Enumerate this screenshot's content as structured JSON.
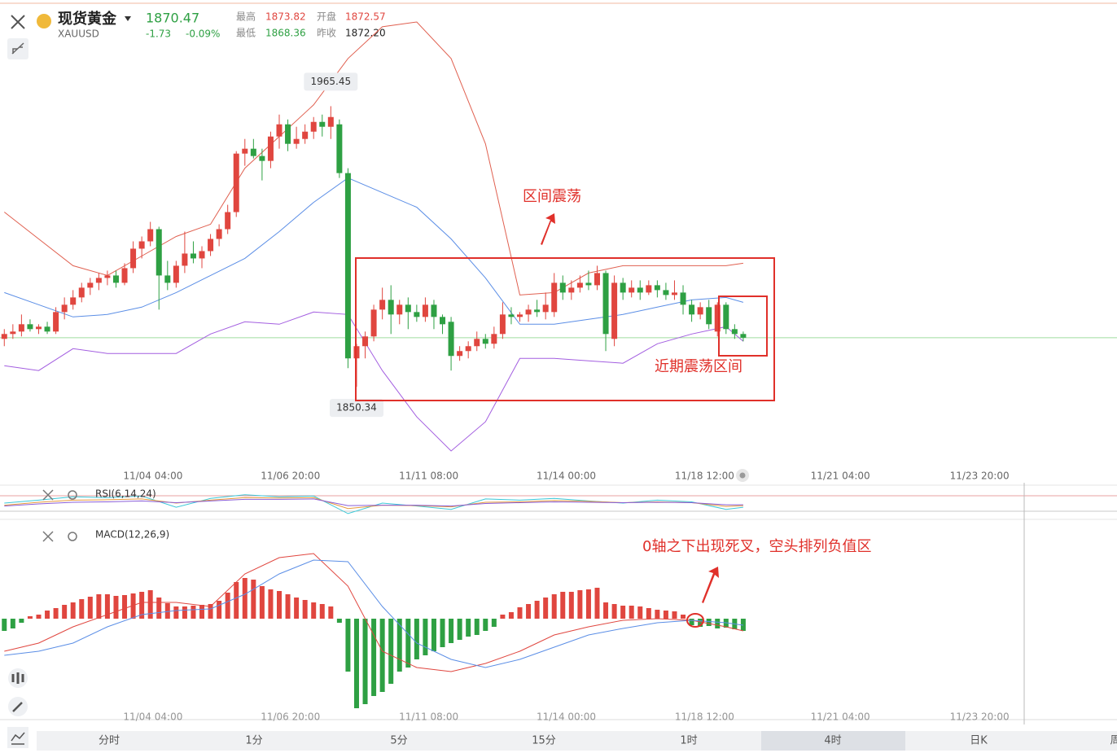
{
  "header": {
    "title": "现货黄金",
    "symbol": "XAUUSD",
    "price": "1870.47",
    "change": "-1.73",
    "change_pct": "-0.09%",
    "stats": [
      {
        "label": "最高",
        "value": "1873.82"
      },
      {
        "label": "开盘",
        "value": "1872.57"
      },
      {
        "label": "最低",
        "value": "1868.36"
      },
      {
        "label": "昨收",
        "value": "1872.20"
      }
    ]
  },
  "chart_data": {
    "type": "candlestick",
    "up_color": "#e0463f",
    "down_color": "#2ea043",
    "xlim": [
      -0.5,
      129.5
    ],
    "ylim": [
      1817,
      2009
    ],
    "xticks": [
      {
        "value": 17.3,
        "label": "11/04 04:00"
      },
      {
        "value": 33.3,
        "label": "11/06 20:00"
      },
      {
        "value": 49.4,
        "label": "11/11 08:00"
      },
      {
        "value": 65.4,
        "label": "11/14 00:00"
      },
      {
        "value": 81.5,
        "label": "11/18 12:00"
      },
      {
        "value": 97.3,
        "label": "11/21 04:00"
      },
      {
        "value": 113.5,
        "label": "11/23 20:00"
      }
    ],
    "candles": {
      "open": [
        1870,
        1872,
        1873,
        1876,
        1874,
        1875,
        1873,
        1881,
        1884,
        1887,
        1891,
        1893,
        1895,
        1896,
        1893,
        1899,
        1907,
        1910,
        1915,
        1896,
        1893,
        1900,
        1905,
        1903,
        1906,
        1911,
        1915,
        1922,
        1946,
        1948,
        1945,
        1943,
        1953,
        1958,
        1950,
        1952,
        1955,
        1959,
        1957,
        1958,
        1938,
        1862,
        1867,
        1871,
        1882,
        1886,
        1880,
        1884,
        1881,
        1879,
        1884,
        1879,
        1877,
        1863,
        1865,
        1867,
        1870,
        1868,
        1872,
        1880,
        1879,
        1880,
        1882,
        1881,
        1881,
        1893,
        1889,
        1891,
        1893,
        1892,
        1897,
        1870,
        1893,
        1889,
        1891,
        1889,
        1892,
        1890,
        1888,
        1889,
        1884,
        1880,
        1883,
        1873,
        1884,
        1874,
        1872
      ],
      "high": [
        1874,
        1876,
        1880,
        1878,
        1876,
        1877,
        1883,
        1887,
        1890,
        1893,
        1895,
        1897,
        1898,
        1898,
        1901,
        1910,
        1912,
        1918,
        1916,
        1902,
        1902,
        1914,
        1910,
        1908,
        1913,
        1917,
        1925,
        1947,
        1952,
        1952,
        1948,
        1955,
        1962,
        1960,
        1957,
        1958,
        1961,
        1962,
        1965.45,
        1960,
        1940,
        1868,
        1873,
        1884,
        1891,
        1892,
        1886,
        1887,
        1884,
        1887,
        1886,
        1880,
        1879,
        1867,
        1869,
        1873,
        1872,
        1875,
        1885,
        1883,
        1881,
        1884,
        1886,
        1889,
        1897,
        1896,
        1894,
        1896,
        1898,
        1900,
        1898,
        1896,
        1895,
        1894,
        1894,
        1894,
        1894,
        1893,
        1894,
        1892,
        1886,
        1885,
        1886,
        1885,
        1885,
        1876,
        1873
      ],
      "low": [
        1867,
        1870,
        1871,
        1873,
        1872,
        1872,
        1872,
        1878,
        1882,
        1885,
        1888,
        1890,
        1892,
        1891,
        1892,
        1897,
        1903,
        1908,
        1882,
        1890,
        1891,
        1897,
        1901,
        1899,
        1904,
        1908,
        1913,
        1920,
        1941,
        1944,
        1935,
        1940,
        1948,
        1947,
        1948,
        1950,
        1952,
        1953,
        1952,
        1936,
        1858,
        1850.34,
        1862,
        1869,
        1878,
        1872,
        1876,
        1874,
        1877,
        1877,
        1874,
        1872,
        1857,
        1861,
        1862,
        1865,
        1866,
        1866,
        1870,
        1876,
        1877,
        1877,
        1879,
        1878,
        1879,
        1886,
        1886,
        1889,
        1890,
        1890,
        1865,
        1867,
        1886,
        1887,
        1886,
        1888,
        1887,
        1886,
        1886,
        1880,
        1877,
        1878,
        1874,
        1871,
        1872,
        1870,
        1869
      ],
      "close": [
        1872,
        1873,
        1876,
        1874,
        1875,
        1873,
        1881,
        1884,
        1887,
        1891,
        1893,
        1895,
        1896,
        1893,
        1899,
        1907,
        1910,
        1915,
        1896,
        1893,
        1900,
        1905,
        1903,
        1906,
        1911,
        1915,
        1922,
        1946,
        1948,
        1945,
        1943,
        1953,
        1958,
        1950,
        1952,
        1955,
        1959,
        1957,
        1961,
        1938,
        1862,
        1867,
        1871,
        1882,
        1886,
        1880,
        1884,
        1881,
        1879,
        1884,
        1879,
        1876,
        1863,
        1865,
        1867,
        1870,
        1868,
        1872,
        1880,
        1879,
        1880,
        1882,
        1881,
        1884,
        1893,
        1889,
        1891,
        1893,
        1892,
        1897,
        1872,
        1893,
        1889,
        1891,
        1889,
        1892,
        1890,
        1888,
        1889,
        1884,
        1880,
        1883,
        1876,
        1884,
        1874,
        1872,
        1870.47
      ]
    },
    "high_label_index": 38,
    "low_label_index": 41,
    "overlays": {
      "x": [
        0,
        4,
        8,
        12,
        16,
        20,
        24,
        28,
        32,
        36,
        40,
        44,
        48,
        52,
        56,
        60,
        64,
        68,
        72,
        76,
        80,
        84,
        86
      ],
      "series": [
        {
          "color": "#e06050",
          "values": [
            1922,
            1911,
            1900,
            1896,
            1904,
            1912,
            1917,
            1940,
            1953,
            1966,
            1985,
            1998,
            2000,
            1985,
            1950,
            1888,
            1889,
            1897,
            1900,
            1900,
            1900,
            1900,
            1901
          ]
        },
        {
          "color": "#5b8ee6",
          "values": [
            1889,
            1884,
            1879,
            1880,
            1883,
            1889,
            1896,
            1903,
            1914,
            1926,
            1936,
            1930,
            1924,
            1911,
            1895,
            1876,
            1876,
            1878,
            1880,
            1883,
            1886,
            1887,
            1885
          ]
        },
        {
          "color": "#a35ee0",
          "values": [
            1859,
            1857,
            1866,
            1864,
            1864,
            1864,
            1872,
            1877,
            1876,
            1881,
            1880,
            1857,
            1838,
            1824,
            1836,
            1862,
            1862,
            1861,
            1860,
            1868,
            1872,
            1875,
            1869
          ]
        }
      ]
    },
    "annotations": [
      "区间震荡",
      "近期震荡区间",
      "0轴之下出现死叉，空头排列负值区"
    ],
    "rsi": {
      "label": "RSI(6,14,24)",
      "ylim": [
        20,
        90
      ],
      "x": [
        0,
        4,
        8,
        12,
        16,
        20,
        24,
        28,
        32,
        36,
        40,
        44,
        48,
        52,
        56,
        60,
        64,
        68,
        72,
        76,
        80,
        84,
        86
      ],
      "series": [
        {
          "color": "#3cc8d8",
          "values": [
            55,
            62,
            70,
            68,
            72,
            45,
            66,
            75,
            70,
            72,
            30,
            55,
            48,
            40,
            65,
            62,
            66,
            60,
            55,
            62,
            58,
            40,
            45
          ]
        },
        {
          "color": "#e69a3c",
          "values": [
            50,
            57,
            62,
            63,
            65,
            55,
            62,
            68,
            67,
            68,
            42,
            50,
            49,
            46,
            57,
            58,
            61,
            59,
            56,
            58,
            56,
            47,
            49
          ]
        },
        {
          "color": "#8a5ed8",
          "values": [
            48,
            53,
            57,
            58,
            60,
            56,
            60,
            64,
            64,
            65,
            49,
            50,
            50,
            48,
            54,
            56,
            58,
            57,
            56,
            57,
            56,
            51,
            51
          ]
        }
      ]
    },
    "macd": {
      "label": "MACD(12,26,9)",
      "ylim": [
        -12,
        12
      ],
      "histogram": [
        -1.5,
        -1.2,
        -0.5,
        0.3,
        0.5,
        1.0,
        1.3,
        1.7,
        2.0,
        2.4,
        2.7,
        3.0,
        3.0,
        2.8,
        2.9,
        3.1,
        3.3,
        3.5,
        2.6,
        1.9,
        1.5,
        1.5,
        1.6,
        1.7,
        1.8,
        2.2,
        3.2,
        4.5,
        5.0,
        4.8,
        4.0,
        3.6,
        3.4,
        3.0,
        2.6,
        2.3,
        2.0,
        1.8,
        1.5,
        -0.5,
        -6.5,
        -11.0,
        -10.5,
        -9.5,
        -9.0,
        -8.0,
        -6.5,
        -6.0,
        -5.0,
        -4.5,
        -4.0,
        -3.5,
        -3.0,
        -2.6,
        -2.2,
        -2.0,
        -1.5,
        -1.0,
        0.5,
        0.8,
        1.4,
        1.8,
        2.2,
        2.6,
        3.0,
        3.3,
        3.3,
        3.5,
        3.6,
        3.8,
        2.0,
        1.8,
        1.6,
        1.6,
        1.5,
        1.3,
        1.1,
        1.0,
        0.9,
        0.5,
        -0.8,
        -1.0,
        -0.9,
        -1.2,
        -1.1,
        -1.3,
        -1.5
      ],
      "x": [
        0,
        4,
        8,
        12,
        16,
        20,
        24,
        28,
        32,
        36,
        40,
        44,
        48,
        52,
        56,
        60,
        64,
        68,
        72,
        76,
        80,
        84,
        86
      ],
      "series": [
        {
          "color": "#e0463f",
          "values": [
            -4,
            -3,
            -1,
            0.5,
            2,
            2,
            1.5,
            5.5,
            7.5,
            8,
            4,
            -4,
            -6,
            -6.5,
            -5.5,
            -4,
            -2,
            -1,
            -0.2,
            0,
            -0.2,
            -1,
            -1.5
          ]
        },
        {
          "color": "#5b8ee6",
          "values": [
            -4.5,
            -4,
            -3,
            -1,
            0.5,
            1,
            1.2,
            3,
            5.5,
            7.2,
            7,
            1.5,
            -3,
            -5,
            -6,
            -5,
            -3.5,
            -2,
            -1.2,
            -0.5,
            -0.2,
            -0.5,
            -0.8
          ]
        }
      ]
    },
    "tabs": [
      "分时",
      "1分",
      "5分",
      "15分",
      "1时",
      "4时",
      "日K",
      "周"
    ]
  }
}
